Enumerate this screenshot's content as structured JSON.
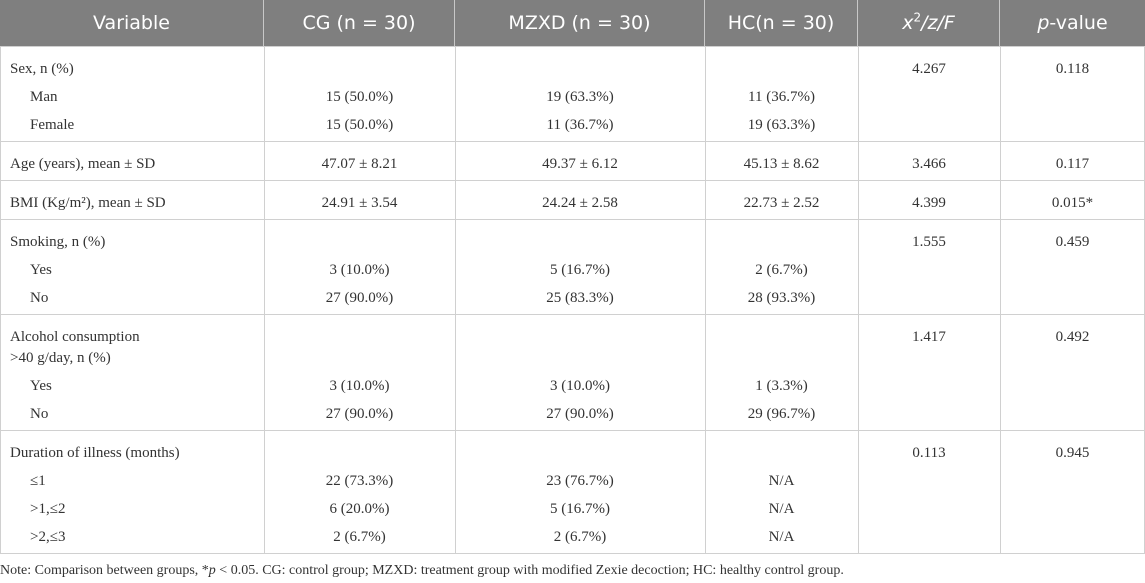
{
  "header": {
    "cells": [
      "Variable",
      "CG (n = 30)",
      "MZXD (n = 30)",
      "HC(n = 30)"
    ],
    "stat": {
      "symbol": "x",
      "sup": "2",
      "rest": "/z/F"
    },
    "p": {
      "symbol": "p",
      "rest": "-value"
    }
  },
  "groups": [
    {
      "rows": [
        {
          "label": [
            "Sex, n (%)"
          ],
          "stat": "4.267",
          "p": "0.118"
        },
        {
          "label": [
            "Man"
          ],
          "values": [
            "15 (50.0%)",
            "19 (63.3%)",
            "11 (36.7%)"
          ]
        },
        {
          "label": [
            "Female"
          ],
          "values": [
            "15 (50.0%)",
            "11 (36.7%)",
            "19 (63.3%)"
          ]
        }
      ]
    },
    {
      "rows": [
        {
          "label": [
            "Age (years), mean ± SD"
          ],
          "values": [
            "47.07 ± 8.21",
            "49.37 ± 6.12",
            "45.13 ± 8.62"
          ],
          "stat": "3.466",
          "p": "0.117"
        }
      ]
    },
    {
      "rows": [
        {
          "label": [
            "BMI (Kg/m²), mean ± SD"
          ],
          "values": [
            "24.91 ± 3.54",
            "24.24 ± 2.58",
            "22.73 ± 2.52"
          ],
          "stat": "4.399",
          "p": "0.015*"
        }
      ]
    },
    {
      "rows": [
        {
          "label": [
            "Smoking, n (%)"
          ],
          "stat": "1.555",
          "p": "0.459"
        },
        {
          "label": [
            "Yes"
          ],
          "values": [
            "3 (10.0%)",
            "5 (16.7%)",
            "2 (6.7%)"
          ]
        },
        {
          "label": [
            "No"
          ],
          "values": [
            "27 (90.0%)",
            "25 (83.3%)",
            "28 (93.3%)"
          ]
        }
      ]
    },
    {
      "rows": [
        {
          "label": [
            "Alcohol consumption",
            ">40 g/day, n (%)"
          ],
          "stat": "1.417",
          "p": "0.492"
        },
        {
          "label": [
            "Yes"
          ],
          "values": [
            "3 (10.0%)",
            "3 (10.0%)",
            "1 (3.3%)"
          ]
        },
        {
          "label": [
            "No"
          ],
          "values": [
            "27 (90.0%)",
            "27 (90.0%)",
            "29 (96.7%)"
          ]
        }
      ]
    },
    {
      "rows": [
        {
          "label": [
            "Duration of illness (months)"
          ],
          "stat": "0.113",
          "p": "0.945"
        },
        {
          "label": [
            "≤1"
          ],
          "values": [
            "22 (73.3%)",
            "23 (76.7%)",
            "N/A"
          ]
        },
        {
          "label": [
            ">1,≤2"
          ],
          "values": [
            "6 (20.0%)",
            "5 (16.7%)",
            "N/A"
          ]
        },
        {
          "label": [
            ">2,≤3"
          ],
          "values": [
            "2 (6.7%)",
            "2 (6.7%)",
            "N/A"
          ]
        }
      ]
    }
  ],
  "note": [
    "Note: Comparison between groups, *",
    "p",
    " < 0.05. CG: control group; MZXD: treatment group with modified Zexie decoction; HC: healthy control group."
  ]
}
